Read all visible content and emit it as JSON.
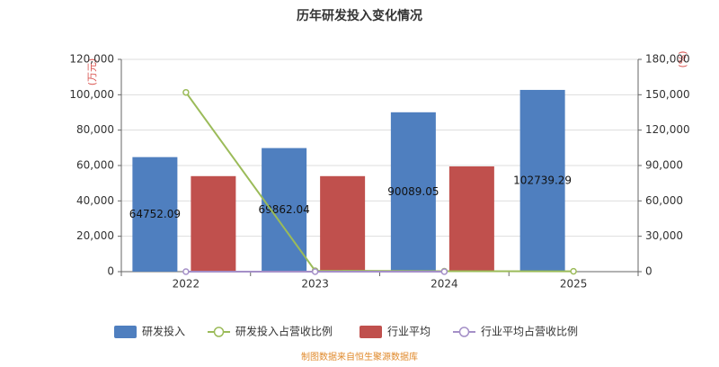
{
  "chart_data": {
    "type": "bar",
    "title": "历年研发投入变化情况",
    "y_unit": "(万元)",
    "y2_unit": "(%)",
    "categories": [
      "2022",
      "2023",
      "2024",
      "2025"
    ],
    "series": [
      {
        "name": "研发投入",
        "kind": "bar",
        "color": "#4f7fbf",
        "values": [
          64752.09,
          69862.04,
          90089.05,
          102739.29
        ]
      },
      {
        "name": "研发投入占营收比例",
        "kind": "line",
        "axis": "y2",
        "color": "#9bbb59",
        "values": [
          152000,
          800,
          400,
          300
        ]
      },
      {
        "name": "行业平均",
        "kind": "bar",
        "color": "#c0504d",
        "values": [
          54000,
          54000,
          59500,
          null
        ]
      },
      {
        "name": "行业平均占营收比例",
        "kind": "line",
        "axis": "y2",
        "color": "#a48fc7",
        "values": [
          10,
          10,
          10,
          null
        ]
      }
    ],
    "ylim": [
      0,
      120000
    ],
    "yticks": [
      0,
      {
        "value": 20000,
        "label": "20,000"
      },
      {
        "value": 40000,
        "label": "40,000"
      },
      {
        "value": 60000,
        "label": "60,000"
      },
      {
        "value": 80000,
        "label": "80,000"
      },
      {
        "value": 100000,
        "label": "100,000"
      },
      {
        "value": 120000,
        "label": "120,000"
      }
    ],
    "y2lim": [
      0,
      180000
    ],
    "y2ticks": [
      0,
      {
        "value": 30000,
        "label": "30,000"
      },
      {
        "value": 60000,
        "label": "60,000"
      },
      {
        "value": 90000,
        "label": "90,000"
      },
      {
        "value": 120000,
        "label": "120,000"
      },
      {
        "value": 150000,
        "label": "150,000"
      },
      {
        "value": 180000,
        "label": "180,000"
      }
    ],
    "grid": true,
    "legend": "bottom",
    "source": "制图数据来自恒生聚源数据库"
  }
}
